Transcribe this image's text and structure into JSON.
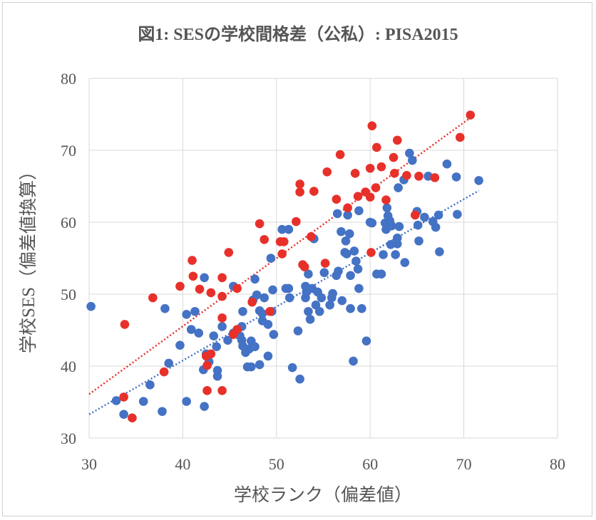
{
  "chart_data": {
    "type": "scatter",
    "title": "図1: SESの学校間格差（公私）: PISA2015",
    "xlabel": "学校ランク（偏差値）",
    "ylabel": "学校SES（偏差値換算）",
    "xlim": [
      30,
      80
    ],
    "ylim": [
      30,
      80
    ],
    "xticks": [
      "30",
      "40",
      "50",
      "60",
      "70",
      "80"
    ],
    "yticks": [
      "30",
      "40",
      "50",
      "60",
      "70",
      "80"
    ],
    "grid": true,
    "legend": "none",
    "colors": {
      "blue": "#4472C4",
      "red": "#E8302A"
    },
    "series": [
      {
        "name": "blue",
        "color": "#4472C4",
        "trendline": {
          "x": [
            30,
            71.6
          ],
          "y": [
            33.3,
            64.4
          ]
        },
        "points": [
          [
            30.2,
            48.3
          ],
          [
            32.9,
            35.2
          ],
          [
            33.7,
            33.3
          ],
          [
            35.8,
            35.1
          ],
          [
            36.5,
            37.4
          ],
          [
            37.8,
            33.7
          ],
          [
            38.1,
            48.0
          ],
          [
            38.5,
            40.4
          ],
          [
            39.7,
            42.9
          ],
          [
            40.4,
            35.1
          ],
          [
            40.4,
            47.2
          ],
          [
            41.3,
            47.6
          ],
          [
            40.9,
            45.1
          ],
          [
            41.7,
            44.6
          ],
          [
            42.3,
            34.4
          ],
          [
            42.2,
            39.5
          ],
          [
            42.3,
            52.3
          ],
          [
            42.5,
            41.7
          ],
          [
            42.8,
            40.6
          ],
          [
            43.3,
            44.2
          ],
          [
            43.6,
            42.7
          ],
          [
            43.7,
            39.4
          ],
          [
            43.7,
            38.6
          ],
          [
            44.2,
            45.5
          ],
          [
            44.8,
            43.6
          ],
          [
            45.4,
            44.6
          ],
          [
            45.4,
            51.1
          ],
          [
            46.1,
            44.2
          ],
          [
            46.3,
            45.5
          ],
          [
            46.3,
            43.6
          ],
          [
            46.4,
            42.8
          ],
          [
            46.4,
            47.6
          ],
          [
            46.7,
            41.9
          ],
          [
            46.9,
            39.9
          ],
          [
            47.1,
            42.4
          ],
          [
            47.3,
            43.5
          ],
          [
            47.3,
            39.9
          ],
          [
            47.5,
            49.2
          ],
          [
            47.7,
            52.1
          ],
          [
            47.7,
            42.7
          ],
          [
            47.9,
            49.9
          ],
          [
            48.2,
            40.2
          ],
          [
            48.2,
            47.7
          ],
          [
            48.5,
            47.3
          ],
          [
            48.5,
            46.3
          ],
          [
            48.7,
            49.5
          ],
          [
            49.1,
            45.8
          ],
          [
            49.1,
            41.4
          ],
          [
            49.4,
            55.0
          ],
          [
            49.5,
            47.6
          ],
          [
            49.6,
            50.6
          ],
          [
            49.7,
            44.4
          ],
          [
            50.6,
            59.0
          ],
          [
            51.0,
            50.8
          ],
          [
            51.3,
            59.0
          ],
          [
            51.3,
            50.8
          ],
          [
            51.4,
            49.5
          ],
          [
            51.7,
            39.8
          ],
          [
            52.3,
            44.9
          ],
          [
            52.5,
            38.2
          ],
          [
            53.1,
            51.1
          ],
          [
            53.1,
            49.5
          ],
          [
            53.2,
            50.3
          ],
          [
            53.4,
            52.8
          ],
          [
            53.4,
            47.6
          ],
          [
            53.6,
            46.5
          ],
          [
            53.8,
            50.8
          ],
          [
            54.0,
            57.7
          ],
          [
            54.2,
            48.5
          ],
          [
            54.4,
            50.3
          ],
          [
            54.6,
            47.6
          ],
          [
            54.8,
            49.5
          ],
          [
            55.1,
            53.0
          ],
          [
            55.7,
            48.5
          ],
          [
            55.9,
            49.5
          ],
          [
            56.0,
            50.1
          ],
          [
            56.4,
            52.6
          ],
          [
            56.5,
            61.2
          ],
          [
            56.6,
            53.2
          ],
          [
            56.9,
            58.7
          ],
          [
            57.0,
            49.1
          ],
          [
            57.3,
            55.8
          ],
          [
            57.4,
            57.4
          ],
          [
            57.6,
            61.0
          ],
          [
            57.5,
            55.6
          ],
          [
            57.8,
            58.4
          ],
          [
            57.9,
            48.0
          ],
          [
            57.9,
            52.6
          ],
          [
            58.2,
            40.7
          ],
          [
            58.3,
            56.0
          ],
          [
            58.5,
            54.6
          ],
          [
            58.7,
            53.5
          ],
          [
            58.8,
            61.6
          ],
          [
            58.8,
            50.8
          ],
          [
            59.1,
            48.0
          ],
          [
            59.6,
            43.5
          ],
          [
            60.0,
            60.0
          ],
          [
            60.2,
            59.9
          ],
          [
            60.7,
            52.8
          ],
          [
            61.2,
            52.8
          ],
          [
            61.4,
            55.5
          ],
          [
            61.6,
            59.9
          ],
          [
            61.7,
            59.0
          ],
          [
            61.8,
            62.0
          ],
          [
            61.9,
            60.9
          ],
          [
            62.1,
            60.2
          ],
          [
            62.2,
            56.9
          ],
          [
            62.3,
            59.5
          ],
          [
            62.7,
            55.5
          ],
          [
            62.9,
            57.8
          ],
          [
            62.9,
            57.0
          ],
          [
            63.0,
            64.8
          ],
          [
            63.1,
            59.4
          ],
          [
            63.7,
            54.4
          ],
          [
            63.6,
            65.9
          ],
          [
            64.2,
            69.6
          ],
          [
            64.5,
            68.6
          ],
          [
            65.0,
            61.5
          ],
          [
            65.1,
            59.6
          ],
          [
            65.2,
            57.4
          ],
          [
            65.8,
            60.7
          ],
          [
            66.2,
            66.4
          ],
          [
            66.7,
            60.1
          ],
          [
            67.0,
            59.3
          ],
          [
            67.3,
            61.0
          ],
          [
            67.4,
            55.9
          ],
          [
            68.2,
            68.1
          ],
          [
            69.2,
            66.3
          ],
          [
            69.3,
            61.1
          ],
          [
            71.6,
            65.8
          ]
        ]
      },
      {
        "name": "red",
        "color": "#E8302A",
        "trendline": {
          "x": [
            30,
            71.1
          ],
          "y": [
            36.1,
            74.9
          ]
        },
        "points": [
          [
            70.7,
            74.9
          ],
          [
            69.6,
            71.8
          ],
          [
            60.2,
            73.4
          ],
          [
            62.9,
            71.4
          ],
          [
            60.7,
            70.4
          ],
          [
            56.8,
            69.4
          ],
          [
            62.5,
            69.0
          ],
          [
            61.2,
            67.7
          ],
          [
            60.0,
            67.5
          ],
          [
            55.4,
            67.0
          ],
          [
            58.4,
            66.8
          ],
          [
            62.6,
            66.8
          ],
          [
            63.9,
            66.5
          ],
          [
            65.2,
            66.4
          ],
          [
            66.9,
            66.2
          ],
          [
            52.5,
            65.3
          ],
          [
            60.6,
            64.8
          ],
          [
            52.5,
            64.2
          ],
          [
            54.0,
            64.3
          ],
          [
            59.5,
            64.2
          ],
          [
            60.0,
            63.5
          ],
          [
            58.7,
            63.6
          ],
          [
            56.4,
            63.2
          ],
          [
            61.7,
            63.1
          ],
          [
            57.6,
            62.0
          ],
          [
            52.1,
            60.1
          ],
          [
            48.2,
            59.8
          ],
          [
            53.7,
            58.0
          ],
          [
            48.7,
            57.6
          ],
          [
            50.4,
            57.3
          ],
          [
            50.8,
            57.3
          ],
          [
            44.9,
            55.8
          ],
          [
            50.6,
            55.6
          ],
          [
            60.1,
            55.8
          ],
          [
            55.2,
            54.3
          ],
          [
            41.0,
            54.7
          ],
          [
            52.8,
            54.1
          ],
          [
            53.0,
            53.8
          ],
          [
            41.1,
            52.5
          ],
          [
            44.2,
            52.3
          ],
          [
            36.8,
            49.5
          ],
          [
            39.7,
            51.1
          ],
          [
            41.8,
            50.7
          ],
          [
            43.0,
            50.2
          ],
          [
            45.8,
            50.8
          ],
          [
            44.2,
            49.7
          ],
          [
            47.4,
            48.9
          ],
          [
            49.3,
            47.6
          ],
          [
            44.2,
            46.7
          ],
          [
            33.8,
            45.8
          ],
          [
            45.8,
            45.1
          ],
          [
            45.4,
            44.4
          ],
          [
            43.0,
            41.7
          ],
          [
            42.5,
            41.4
          ],
          [
            38.0,
            39.2
          ],
          [
            42.6,
            40.1
          ],
          [
            42.6,
            36.6
          ],
          [
            44.2,
            36.6
          ],
          [
            33.7,
            35.7
          ],
          [
            34.6,
            32.8
          ],
          [
            64.8,
            61.0
          ]
        ]
      }
    ]
  }
}
